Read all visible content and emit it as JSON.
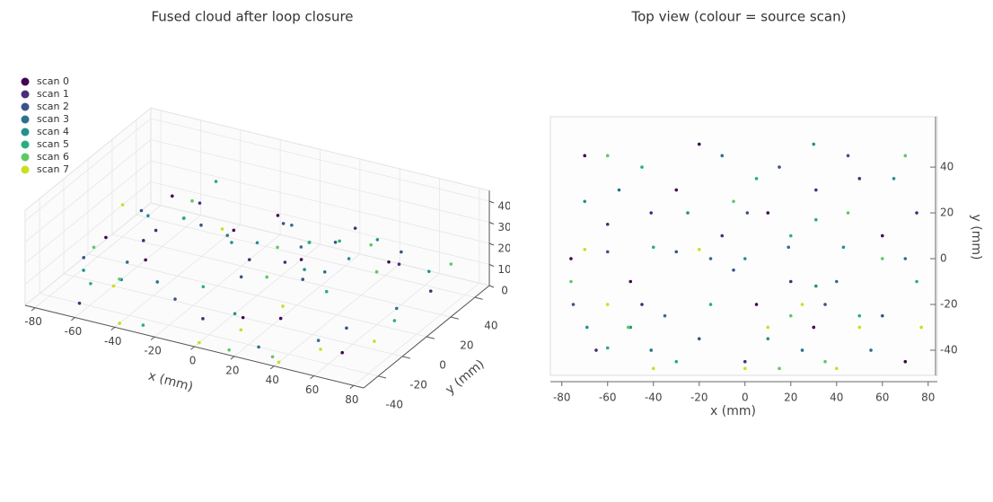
{
  "chart_data": [
    {
      "type": "scatter3d",
      "title": "Fused cloud after loop closure",
      "xlabel": "x (mm)",
      "ylabel": "y (mm)",
      "xlim": [
        -85,
        85
      ],
      "ylim": [
        -52,
        52
      ],
      "zlim": [
        0,
        45
      ],
      "xticks": [
        -80,
        -60,
        -40,
        -20,
        0,
        20,
        40,
        60,
        80
      ],
      "yticks": [
        -40,
        -20,
        0,
        20,
        40
      ],
      "zticks": [
        0,
        10,
        20,
        30,
        40
      ],
      "grid": true,
      "legend": "upper left",
      "series": [
        {
          "name": "scan 0",
          "color": "#440154",
          "x": [
            -70,
            -20,
            30,
            60,
            -50,
            10,
            -76,
            70,
            5,
            -30
          ],
          "y": [
            45,
            50,
            -30,
            10,
            -10,
            20,
            0,
            -45,
            -20,
            30
          ],
          "z": [
            10,
            10,
            10,
            25,
            10,
            10,
            10,
            10,
            0,
            10
          ]
        },
        {
          "name": "scan 1",
          "color": "#472d7b",
          "x": [
            -41,
            -45,
            31,
            0,
            50,
            -60,
            20,
            75,
            -10,
            -65
          ],
          "y": [
            20,
            -20,
            30,
            -45,
            35,
            15,
            -10,
            20,
            10,
            -40
          ],
          "z": [
            25,
            25,
            25,
            10,
            10,
            10,
            25,
            10,
            10,
            0
          ]
        },
        {
          "name": "scan 2",
          "color": "#3b528b",
          "x": [
            -30,
            -60,
            1,
            60,
            -20,
            45,
            15,
            -75,
            35,
            -5
          ],
          "y": [
            3,
            3,
            20,
            -25,
            -35,
            45,
            40,
            -20,
            -20,
            -5
          ],
          "z": [
            25,
            25,
            25,
            10,
            10,
            10,
            10,
            10,
            25,
            10
          ]
        },
        {
          "name": "scan 3",
          "color": "#2c728e",
          "x": [
            -15,
            -41,
            19,
            40,
            70,
            -55,
            25,
            -35,
            55,
            -10
          ],
          "y": [
            0,
            -40,
            5,
            -10,
            0,
            30,
            -40,
            -25,
            -40,
            45
          ],
          "z": [
            25,
            25,
            25,
            25,
            10,
            10,
            0,
            10,
            10,
            10
          ]
        },
        {
          "name": "scan 4",
          "color": "#21918c",
          "x": [
            43,
            31,
            -50,
            -69,
            0,
            10,
            65,
            -25,
            -70,
            30
          ],
          "y": [
            5,
            -12,
            -30,
            -30,
            0,
            -35,
            35,
            20,
            25,
            50
          ],
          "z": [
            25,
            25,
            10,
            10,
            25,
            10,
            10,
            10,
            10,
            10
          ]
        },
        {
          "name": "scan 5",
          "color": "#28ae80",
          "x": [
            31,
            50,
            -60,
            -40,
            20,
            -15,
            75,
            -45,
            5,
            -30
          ],
          "y": [
            17,
            -25,
            -39,
            5,
            10,
            -20,
            -10,
            40,
            35,
            -45
          ],
          "z": [
            25,
            25,
            10,
            25,
            25,
            10,
            10,
            25,
            10,
            0
          ]
        },
        {
          "name": "scan 6",
          "color": "#5ec962",
          "x": [
            60,
            20,
            -51,
            -76,
            35,
            -5,
            70,
            -60,
            15,
            45
          ],
          "y": [
            0,
            -25,
            -30,
            -10,
            -45,
            25,
            45,
            45,
            -48,
            20
          ],
          "z": [
            25,
            25,
            10,
            10,
            0,
            10,
            10,
            10,
            0,
            25
          ]
        },
        {
          "name": "scan 7",
          "color": "#c8e020",
          "x": [
            0,
            -40,
            40,
            -70,
            -20,
            10,
            50,
            77,
            -60,
            25
          ],
          "y": [
            -48,
            -48,
            -48,
            4,
            4,
            -30,
            -30,
            -30,
            -20,
            -20
          ],
          "z": [
            0,
            0,
            0,
            25,
            25,
            0,
            0,
            10,
            0,
            10
          ]
        }
      ]
    },
    {
      "type": "scatter",
      "title": "Top view (colour = source scan)",
      "xlabel": "x (mm)",
      "ylabel": "y (mm)",
      "xlim": [
        -85,
        84
      ],
      "ylim": [
        -51,
        62
      ],
      "xticks": [
        -80,
        -60,
        -40,
        -20,
        0,
        20,
        40,
        60,
        80
      ],
      "yticks": [
        -40,
        -20,
        0,
        20,
        40
      ],
      "series": [
        {
          "name": "scan 0",
          "color": "#440154",
          "x": [
            -70,
            -20,
            30,
            60,
            -50,
            10,
            -76,
            70,
            5,
            -30
          ],
          "y": [
            45,
            50,
            -30,
            10,
            -10,
            20,
            0,
            -45,
            -20,
            30
          ]
        },
        {
          "name": "scan 1",
          "color": "#472d7b",
          "x": [
            -41,
            -45,
            31,
            0,
            50,
            -60,
            20,
            75,
            -10,
            -65
          ],
          "y": [
            20,
            -20,
            30,
            -45,
            35,
            15,
            -10,
            20,
            10,
            -40
          ]
        },
        {
          "name": "scan 2",
          "color": "#3b528b",
          "x": [
            -30,
            -60,
            1,
            60,
            -20,
            45,
            15,
            -75,
            35,
            -5
          ],
          "y": [
            3,
            3,
            20,
            -25,
            -35,
            45,
            40,
            -20,
            -20,
            -5
          ]
        },
        {
          "name": "scan 3",
          "color": "#2c728e",
          "x": [
            -15,
            -41,
            19,
            40,
            70,
            -55,
            25,
            -35,
            55,
            -10
          ],
          "y": [
            0,
            -40,
            5,
            -10,
            0,
            30,
            -40,
            -25,
            -40,
            45
          ]
        },
        {
          "name": "scan 4",
          "color": "#21918c",
          "x": [
            43,
            31,
            -50,
            -69,
            0,
            10,
            65,
            -25,
            -70,
            30
          ],
          "y": [
            5,
            -12,
            -30,
            -30,
            0,
            -35,
            35,
            20,
            25,
            50
          ]
        },
        {
          "name": "scan 5",
          "color": "#28ae80",
          "x": [
            31,
            50,
            -60,
            -40,
            20,
            -15,
            75,
            -45,
            5,
            -30
          ],
          "y": [
            17,
            -25,
            -39,
            5,
            10,
            -20,
            -10,
            40,
            35,
            -45
          ]
        },
        {
          "name": "scan 6",
          "color": "#5ec962",
          "x": [
            60,
            20,
            -51,
            -76,
            35,
            -5,
            70,
            -60,
            15,
            45
          ],
          "y": [
            0,
            -25,
            -30,
            -10,
            -45,
            25,
            45,
            45,
            -48,
            20
          ]
        },
        {
          "name": "scan 7",
          "color": "#c8e020",
          "x": [
            0,
            -40,
            40,
            -70,
            -20,
            10,
            50,
            77,
            -60,
            25
          ],
          "y": [
            -48,
            -48,
            -48,
            4,
            4,
            -30,
            -30,
            -30,
            -20,
            -20
          ]
        }
      ]
    }
  ]
}
